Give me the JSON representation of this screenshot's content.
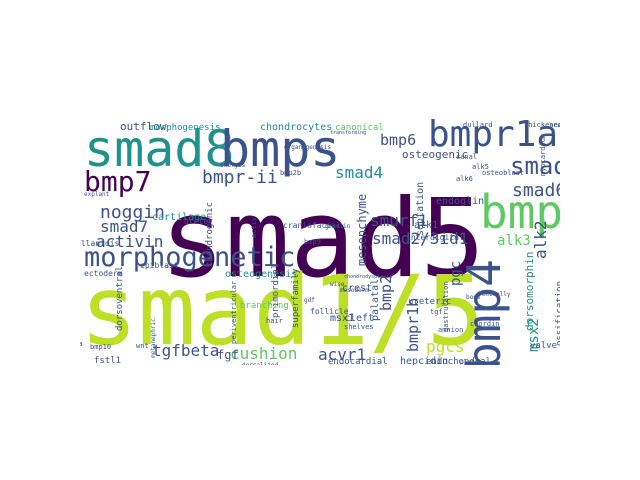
{
  "word_cloud": {
    "palette": [
      "#440154",
      "#3b528b",
      "#21918c",
      "#5ec962",
      "#bddf26",
      "#fde725"
    ],
    "words": [
      {
        "text": "smad5",
        "color": "#440154"
      },
      {
        "text": "smad1/5",
        "color": "#bddf26"
      },
      {
        "text": "smad8",
        "color": "#21918c"
      },
      {
        "text": "bmps",
        "color": "#3b528b"
      },
      {
        "text": "bmpr1a",
        "color": "#3b528b"
      },
      {
        "text": "bmp",
        "color": "#5ec962"
      },
      {
        "text": "bmp4",
        "color": "#3b528b"
      },
      {
        "text": "morphogenetic",
        "color": "#3b528b"
      },
      {
        "text": "bmp7",
        "color": "#440154"
      },
      {
        "text": "smads",
        "color": "#3b528b"
      },
      {
        "text": "bmp6",
        "color": "#3b528b"
      },
      {
        "text": "bmpr-ii",
        "color": "#3b528b"
      },
      {
        "text": "noggin",
        "color": "#3b528b"
      },
      {
        "text": "smad7",
        "color": "#3b528b"
      },
      {
        "text": "activin",
        "color": "#3b528b"
      },
      {
        "text": "smad4",
        "color": "#21918c"
      },
      {
        "text": "smad6",
        "color": "#3b528b"
      },
      {
        "text": "smurf1",
        "color": "#3b528b"
      },
      {
        "text": "smad2/3id1",
        "color": "#3b528b"
      },
      {
        "text": "alk3",
        "color": "#5ec962"
      },
      {
        "text": "alk2",
        "color": "#3b528b"
      },
      {
        "text": "tgfbeta",
        "color": "#3b528b"
      },
      {
        "text": "cushion",
        "color": "#5ec962"
      },
      {
        "text": "acvr1",
        "color": "#3b528b"
      },
      {
        "text": "pgcs",
        "color": "#bddf26"
      },
      {
        "text": "bmpr1b",
        "color": "#3b528b"
      },
      {
        "text": "pgc",
        "color": "#3b528b"
      },
      {
        "text": "bmp2",
        "color": "#3b528b"
      },
      {
        "text": "msx2",
        "color": "#21918c"
      },
      {
        "text": "osteogenic",
        "color": "#3b528b"
      },
      {
        "text": "outflow",
        "color": "#3b528b"
      },
      {
        "text": "morphogenesis",
        "color": "#21918c"
      },
      {
        "text": "chondrocytes",
        "color": "#21918c"
      },
      {
        "text": "canonical",
        "color": "#5ec962"
      },
      {
        "text": "mesenchyme",
        "color": "#3b528b"
      },
      {
        "text": "endoglin",
        "color": "#3b528b"
      },
      {
        "text": "septation",
        "color": "#3b528b"
      },
      {
        "text": "cartilage",
        "color": "#21918c"
      },
      {
        "text": "alk1",
        "color": "#3b528b"
      },
      {
        "text": "dorsomorphin",
        "color": "#21918c"
      },
      {
        "text": "ossification",
        "color": "#3b528b"
      },
      {
        "text": "osteogenesis",
        "color": "#21918c"
      },
      {
        "text": "msx1",
        "color": "#3b528b"
      },
      {
        "text": "crest",
        "color": "#3b528b"
      },
      {
        "text": "palatal",
        "color": "#3b528b"
      },
      {
        "text": "cleft",
        "color": "#3b528b"
      },
      {
        "text": "ureteric",
        "color": "#3b528b"
      },
      {
        "text": "hepcidin",
        "color": "#3b528b"
      },
      {
        "text": "endocardial",
        "color": "#3b528b"
      },
      {
        "text": "endochondral",
        "color": "#3b528b"
      },
      {
        "text": "valve",
        "color": "#3b528b"
      },
      {
        "text": "ectoderm",
        "color": "#3b528b"
      },
      {
        "text": "epiblast",
        "color": "#3b528b"
      },
      {
        "text": "allantois",
        "color": "#3b528b"
      },
      {
        "text": "primordial",
        "color": "#3b528b"
      },
      {
        "text": "chondrogenic",
        "color": "#3b528b"
      },
      {
        "text": "superfamily",
        "color": "#3b528b"
      },
      {
        "text": "branching",
        "color": "#5ec962"
      },
      {
        "text": "craniofacial",
        "color": "#3b528b"
      },
      {
        "text": "follicle",
        "color": "#3b528b"
      },
      {
        "text": "fgf",
        "color": "#3b528b"
      },
      {
        "text": "fstl1",
        "color": "#3b528b"
      },
      {
        "text": "dorsoventral",
        "color": "#3b528b"
      },
      {
        "text": "explant",
        "color": "#3b528b"
      },
      {
        "text": "interdigital",
        "color": "#3b528b"
      },
      {
        "text": "bmp10",
        "color": "#3b528b"
      },
      {
        "text": "bmp9",
        "color": "#3b528b"
      },
      {
        "text": "bmp2b",
        "color": "#3b528b"
      },
      {
        "text": "ureter",
        "color": "#3b528b"
      },
      {
        "text": "metanephric",
        "color": "#3b528b"
      },
      {
        "text": "periventricular",
        "color": "#3b528b"
      },
      {
        "text": "shelves",
        "color": "#3b528b"
      },
      {
        "text": "hair",
        "color": "#3b528b"
      },
      {
        "text": "osteoblast",
        "color": "#3b528b"
      },
      {
        "text": "amnion",
        "color": "#3b528b"
      },
      {
        "text": "chordin",
        "color": "#3b528b"
      },
      {
        "text": "myocardium",
        "color": "#3b528b"
      },
      {
        "text": "gastrulation",
        "color": "#3b528b"
      },
      {
        "text": "canal",
        "color": "#3b528b"
      },
      {
        "text": "bone",
        "color": "#3b528b"
      },
      {
        "text": "plate",
        "color": "#3b528b"
      },
      {
        "text": "wnt",
        "color": "#3b528b"
      },
      {
        "text": "tgf",
        "color": "#3b528b"
      },
      {
        "text": "mesoderm",
        "color": "#3b528b"
      },
      {
        "text": "wise",
        "color": "#3b528b"
      },
      {
        "text": "vasculature",
        "color": "#3b528b"
      },
      {
        "text": "alk6",
        "color": "#3b528b"
      },
      {
        "text": "alk5",
        "color": "#3b528b"
      },
      {
        "text": "ventrally",
        "color": "#3b528b"
      },
      {
        "text": "dorsalized",
        "color": "#3b528b"
      },
      {
        "text": "la",
        "color": "#3b528b"
      },
      {
        "text": "activ",
        "color": "#3b528b"
      },
      {
        "text": "gdf",
        "color": "#3b528b"
      },
      {
        "text": "dullard",
        "color": "#3b528b"
      },
      {
        "text": "thickened",
        "color": "#3b528b"
      },
      {
        "text": "scaffold",
        "color": "#3b528b"
      },
      {
        "text": "organogenesis",
        "color": "#3b528b"
      },
      {
        "text": "embryos",
        "color": "#3b528b"
      },
      {
        "text": "transforming",
        "color": "#3b528b"
      },
      {
        "text": "chondrodysplasia",
        "color": "#3b528b"
      },
      {
        "text": "gremlin",
        "color": "#3b528b"
      }
    ]
  }
}
